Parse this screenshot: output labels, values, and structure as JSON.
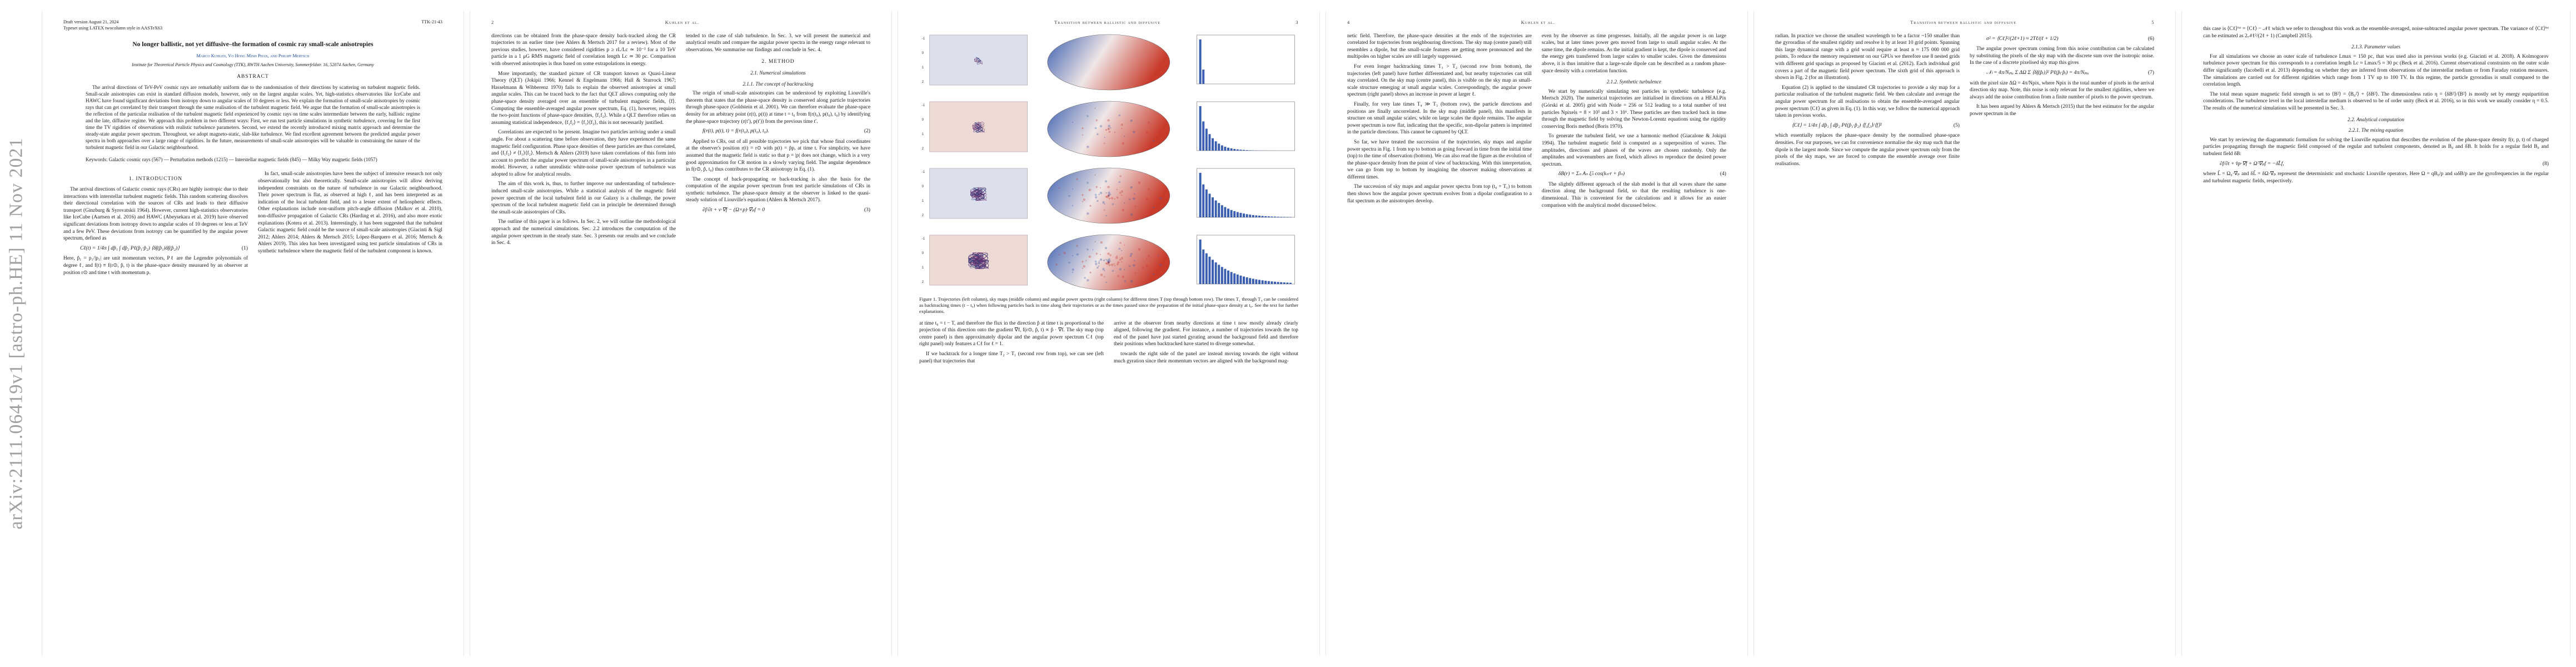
{
  "stamp": "arXiv:2111.06419v1  [astro-ph.HE]  11 Nov 2021",
  "pages": {
    "p1": {
      "preprint_line1": "Draft version August 21, 2024",
      "preprint_line2": "Typeset using LATEX twocolumn style in AASTeX63",
      "preprint_id": "TTK-21-43",
      "title": "No longer ballistic, not yet diffusive–the formation of cosmic ray small-scale anisotropies",
      "authors": "Marco Kuhlen, Vo Hong Minh Phan, and Philipp Mertsch",
      "affil": "Institute for Theoretical Particle Physics and Cosmology (TTK), RWTH Aachen University, Sommerfeldstr. 16, 52074 Aachen, Germany",
      "abstract_head": "ABSTRACT",
      "abstract": "The arrival directions of TeV-PeV cosmic rays are remarkably uniform due to the randomisation of their directions by scattering on turbulent magnetic fields. Small-scale anisotropies can exist in standard diffusion models, however, only on the largest angular scales. Yet, high-statistics observatories like IceCube and HAWC have found significant deviations from isotropy down to angular scales of 10 degrees or less. We explain the formation of small-scale anisotropies by cosmic rays that can get correlated by their transport through the same realisation of the turbulent magnetic field. We argue that the formation of small-scale anisotropies is the reflection of the particular realisation of the turbulent magnetic field experienced by cosmic rays on time scales intermediate between the early, ballistic regime and the late, diffusive regime. We approach this problem in two different ways: First, we run test particle simulations in synthetic turbulence, covering for the first time the TV rigidities of observations with realistic turbulence parameters. Second, we extend the recently introduced mixing matrix approach and determine the steady-state angular power spectrum. Throughout, we adopt magneto-static, slab-like turbulence. We find excellent agreement between the predicted angular power spectra in both approaches over a large range of rigidities. In the future, measurements of small-scale anisotropies will be valuable in constraining the nature of the turbulent magnetic field in our Galactic neighbourhood.",
      "keywords": "Keywords: Galactic cosmic rays (567) — Perturbation methods (1215) — Interstellar magnetic fields (845) — Milky Way magnetic fields (1057)",
      "intro_head": "1. INTRODUCTION",
      "intro_a": "The arrival directions of Galactic cosmic rays (CRs) are highly isotropic due to their interactions with interstellar turbulent magnetic fields. This random scattering dissolves their directional correlation with the sources of CRs and leads to their diffusive transport (Ginzburg & Syrovatskii 1964). However, current high-statistics observatories like IceCube (Aartsen et al. 2016) and HAWC (Abeysekara et al. 2019) have observed significant deviations from isotropy down to angular scales of 10 degrees or less at TeV and a few PeV. These deviations from isotropy can be quantified by the angular power spectrum, defined as",
      "eq1": "Cℓ(t) = 1/4π ∫ dp̂₁ ∫ dp̂₂ Pℓ(p̂₁·p̂₂) ⟨δf(p̂₁)δf(p̂₂)⟩",
      "eq1_no": "(1)",
      "intro_b": "Here, p̂₁ = p₁/|p₁| are unit momentum vectors, Pℓ are the Legendre polynomials of degree ℓ, and f(t) ≡ f(r⊙, p̂, t) is the phase-space density measured by an observer at position r⊙ and time t with momentum p.",
      "intro_c": "In fact, small-scale anisotropies have been the subject of intensive research not only observationally but also theoretically. Small-scale anisotropies will allow deriving independent constraints on the nature of turbulence in our Galactic neighbourhood. Their power spectrum is flat, as observed at high ℓ, and has been interpreted as an indication of the local turbulent field, and to a lesser extent of heliospheric effects. Other explanations include non-uniform pitch-angle diffusion (Malkov et al. 2010), non-diffusive propagation of Galactic CRs (Harding et al. 2016), and also more exotic explanations (Kotera et al. 2013). Interestingly, it has been suggested that the turbulent Galactic magnetic field could be the source of small-scale anisotropies (Giacinti & Sigl 2012; Ahlers 2014; Ahlers & Mertsch 2015; López-Barquero et al. 2016; Mertsch & Ahlers 2019). This idea has been investigated using test particle simulations of CRs in synthetic turbulence where the magnetic field of the turbulent component is known."
    },
    "p2": {
      "rh_left": "2",
      "rh_mid": "Kuhlen et al.",
      "text_a": "directions can be obtained from the phase-space density back-tracked along the CR trajectories to an earlier time (see Ahlers & Mertsch 2017 for a review). Most of the previous studies, however, have considered rigidities p ≥ rL/Lc ≃ 10⁻³ for a 10 TeV particle in a 1 μG RMS magnetic field of correlation length Lc ≃ 30 pc. Comparison with observed anisotropies is thus based on some extrapolations in energy.",
      "text_b": "More importantly, the standard picture of CR transport known as Quasi-Linear Theory (QLT) (Jokipii 1966; Kennel & Engelmann 1966; Hall & Sturrock 1967; Hasselmann & Wibberenz 1970) fails to explain the observed anisotropies at small angular scales. This can be traced back to the fact that QLT allows computing only the phase-space density averaged over an ensemble of turbulent magnetic fields, ⟨f⟩. Computing the ensemble-averaged angular power spectrum, Eq. (1), however, requires the two-point functions of phase-space densities, ⟨f₁f₂⟩. While a QLT therefore relies on assuming statistical independence, ⟨f₁f₂⟩ = ⟨f₁⟩⟨f₂⟩, this is not necessarily justified.",
      "text_c": "Correlations are expected to be present. Imagine two particles arriving under a small angle. For about a scattering time before observation, they have experienced the same magnetic field configuration. Phase space densities of these particles are thus correlated, and ⟨f₁f₂⟩ ≠ ⟨f₁⟩⟨f₂⟩. Mertsch & Ahlers (2019) have taken correlations of this form into account to predict the angular power spectrum of small-scale anisotropies in a particular model. However, a rather unrealistic white-noise power spectrum of turbulence was adopted to allow for analytical results.",
      "text_d": "The aim of this work is, thus, to further improve our understanding of turbulence-induced small-scale anisotropies. While a statistical analysis of the magnetic field power spectrum of the local turbulent field in our Galaxy is a challenge, the power spectrum of the local turbulent magnetic field can in principle be determined through the small-scale anisotropies of CRs.",
      "text_e": "The outline of this paper is as follows. In Sec. 2, we will outline the methodological approach and the numerical simulations. Sec. 2.2 introduces the computation of the angular power spectrum in the steady state. Sec. 3 presents our results and we conclude in Sec. 4.",
      "text_f": "tended to the case of slab turbulence. In Sec. 3, we will present the numerical and analytical results and compare the angular power spectra in the energy range relevant to observations. We summarise our findings and conclude in Sec. 4.",
      "sec2": "2. METHOD",
      "sec21": "2.1. Numerical simulations",
      "sec211": "2.1.1. The concept of backtracking",
      "text_g": "The origin of small-scale anisotropies can be understood by exploiting Liouville's theorem that states that the phase-space density is conserved along particle trajectories through phase-space (Goldstein et al. 2001). We can therefore evaluate the phase-space density for an arbitrary point (r(t), p(t)) at time t = t₀ from f(r(t₀), p(t₀), t₀) by identifying the phase-space trajectory (r(t′), p(t′)) from the previous time t′.",
      "eq2": "f(r(t), p(t), t) = f(r(t₀), p(t₀), t₀).",
      "eq2_no": "(2)",
      "text_h": "Applied to CRs, out of all possible trajectories we pick that whose final coordinates at the observer's position r(t) = r⊙ with p(t) = p̂p, at time t. For simplicity, we have assumed that the magnetic field is static so that p = |p| does not change, which is a very good approximation for CR motion in a slowly varying field. The angular dependence in f(r⊙, p̂, t₀) thus contributes to the CR anisotropy in Eq. (1).",
      "text_i": "The concept of back-propagating or back-tracking is also the basis for the computation of the angular power spectrum from test particle simulations of CRs in synthetic turbulence. The phase-space density at the observer is linked to the quasi-steady solution of Liouville's equation (Ahlers & Mertsch 2017).",
      "eq3": "∂f/∂t + v·∇f − (Ω×p)·∇ₚf = 0",
      "eq3_no": "(3)"
    },
    "p3": {
      "rh_mid": "Transition between ballistic and diffusive",
      "rh_right": "3",
      "caption": "Figure 1. Trajectories (left column), sky maps (middle column) and angular power spectra (right column) for different times T (top through bottom row). The times T₁ through T₄ can be considered as backtracking times (t − t₀) when following particles back in time along their trajectories or as the times passed since the preparation of the initial phase-space density at t₀. See the text for further explanations.",
      "text_a": "at time t₀ = t − T, and therefore the flux in the direction p̂ at time t is proportional to the projection of this direction onto the gradient ∇f, f(r⊙, p̂, t) ∝ p̂ · ∇f. The sky map (top centre panel) is then approximately dipolar and the angular power spectrum Cℓ (top right panel) only features a Cℓ for ℓ = 1.",
      "text_b": "If we backtrack for a longer time T₂ > T₁ (second row from top), we can see (left panel) that trajectories that",
      "text_c": "arrive at the observer from nearby directions at time t now mostly already clearly aligned, following the gradient. For instance, a number of trajectories towards the top end of the panel have just started gyrating around the background field and therefore their positions when backtracked have started to diverge somewhat.",
      "text_d": "towards the right side of the panel are instead moving towards the right without much gyration since their momentum vectors are aligned with the background mag-",
      "axis_ticks": [
        "-1",
        "0",
        "1",
        "2"
      ]
    },
    "p4": {
      "rh_left": "4",
      "rh_mid": "Kuhlen et al.",
      "text_a": "netic field. Therefore, the phase-space densities at the ends of the trajectories are correlated for trajectories from neighbouring directions. The sky map (centre panel) still resembles a dipole, but the small-scale features are getting more pronounced and the multipoles on higher scales are still largely suppressed.",
      "text_b": "For even longer backtracking times T₃ > T₂ (second row from bottom), the trajectories (left panel) have further differentiated and, but nearby trajectories can still stay correlated. On the sky map (centre panel), this is visible on the sky map as small-scale structure emerging at small angular scales. Correspondingly, the angular power spectrum (right panel) shows an increase in power at larger ℓ.",
      "text_c": "Finally, for very late times T₄ ≫ T₃ (bottom row), the particle directions and positions are finally uncorrelated. In the sky map (middle panel), this manifests in structure on small angular scales, while on large scales the dipole remains. The angular power spectrum is now flat, indicating that the specific, non-dipolar pattern is imprinted in the particle directions. This cannot be captured by QLT.",
      "text_d": "So far, we have treated the succession of the trajectories, sky maps and angular power spectra in Fig. 1 from top to bottom as going forward in time from the initial time (top) to the time of observation (bottom). We can also read the figure as the evolution of the phase-space density from the point of view of backtracking. With this interpretation, we can go from top to bottom by imagining the observer making observations at different times.",
      "text_e": "The succession of sky maps and angular power spectra from top (t₀ + T₁) to bottom then shows how the angular power spectrum evolves from a dipolar configuration to a flat spectrum as the anisotropies develop.",
      "text_f": "even by the observer as time progresses. Initially, all the angular power is on large scales, but at later times power gets moved from large to small angular scales. At the same time, the dipole remains. As the initial gradient is kept, the dipole is conserved and the energy gets transferred from larger scales to smaller scales. Given the dimensions above, it is thus intuitive that a large-scale dipole can be described as a random phase-space density with a correlation function.",
      "sec212": "2.1.2. Synthetic turbulence",
      "text_g": "We start by numerically simulating test particles in synthetic turbulence (e.g. Mertsch 2020). The numerical trajectories are initialised in directions on a HEALPix (Górski et al. 2005) grid with Nside = 256 or 512 leading to a total number of test particles Npixels = 8 × 10⁵ and 3 × 10⁶. These particles are then tracked back in time through the magnetic field by solving the Newton-Lorentz equations using the rigidity conserving Boris method (Boris 1970).",
      "text_h": "To generate the turbulent field, we use a harmonic method (Giacalone & Jokipii 1994). The turbulent magnetic field is computed as a superposition of waves. The amplitudes, directions and phases of the waves are chosen randomly. Only the amplitudes and wavenumbers are fixed, which allows to reproduce the desired power spectrum.",
      "eq4": "δB(r) = Σₙ Aₙ ξ̂ₙ cos(kₙ·r + βₙ)",
      "eq4_no": "(4)",
      "text_i": "The slightly different approach of the slab model is that all waves share the same direction along the background field, so that the resulting turbulence is one-dimensional. This is convenient for the calculations and it allows for an easier comparison with the analytical model discussed below."
    },
    "p5": {
      "rh_mid": "Transition between ballistic and diffusive",
      "rh_right": "5",
      "text_a": "radian. In practice we choose the smallest wavelength to be a factor ~150 smaller than the gyroradius of the smallest rigidity and resolve it by at least 10 grid points. Spanning this large dynamical range with a grid would require at least n ≈ 175 000 000 grid points. To reduce the memory requirement on our GPUs we therefore use 8 nested grids with different grid spacings as proposed by Giacinti et al. (2012). Each individual grid covers a part of the magnetic field power spectrum. The sixth grid of this approach is shown in Fig. 2 (for an illustration).",
      "text_b": "Equation (2) is applied to the simulated CR trajectories to provide a sky map for a particular realisation of the turbulent magnetic field. We then calculate and average the angular power spectrum for all realisations to obtain the ensemble-averaged angular power spectrum ⟨Cℓ⟩ as given in Eq. (1). In this way, we follow the numerical approach taken in previous works.",
      "eq5": "⟨Cℓ⟩ = 1/4π ∫ dp̂₁ ∫ dp̂₂ Pℓ(p̂₁·p̂₂) ⟨f₁f₂⟩/⟨f⟩²",
      "eq5_no": "(5)",
      "text_c": "which essentially replaces the phase-space density by the normalised phase-space densities. For our purposes, we can for convenience normalise the sky map such that the dipole is the largest mode. Since we compute the angular power spectrum only from the pixels of the sky maps, we are forced to compute the ensemble average over finite realisations.",
      "eq6": "σ² = ⟨Cℓ⟩²/(2ℓ+1) ≈ 2Tℓ/(ℓ + 1/2)",
      "eq6_no": "(6)",
      "text_d": "The angular power spectrum coming from this noise contribution can be calculated by substituting the pixels of the sky map with the discrete sum over the isotropic noise. In the case of a discrete pixelised sky map this gives",
      "eq7": "𝒩ₗ = 4π/Nₚᵢₓ Σ ΔΩ Σ ⟨δf(p̂ᵢ)⟩² Pℓ(p̂ᵢ·p̂ᵢ) = 4π/Nₚᵢₓ",
      "eq7_no": "(7)",
      "text_e": "with the pixel size ΔΩ = 4π/Npix, where Npix is the total number of pixels in the arrival direction sky map. Note, this noise is only relevant for the smallest rigidities, where we always add the noise contribution from a finite number of pixels to the power spectrum.",
      "text_f": "It has been argued by Ahlers & Mertsch (2015) that the best estimator for the angular power spectrum in the"
    },
    "p6": {
      "text_a": "this case is ⟨Cℓ⟩ⁱˢᵒ = ⟨Cℓ⟩ − 𝒩ℓ which we refer to throughout this work as the ensemble-averaged, noise-subtracted angular power spectrum. The variance of ⟨Cℓ⟩ⁱˢᵒ can be estimated as 2𝒩ℓ²/(2ℓ + 1) (Campbell 2015).",
      "sec213": "2.1.3. Parameter values",
      "text_b": "For all simulations we choose an outer scale of turbulence Lmax = 150 pc, that was used also in previous works (e.g. Giacinti et al. 2018). A Kolmogorov turbulence power spectrum for this corresponds to a correlation length Lc ≈ Lmax/5 ≈ 30 pc (Beck et al. 2016). Current observational constraints on the outer scale differ significantly (Iacobelli et al. 2013) depending on whether they are inferred from observations of the interstellar medium or from Faraday rotation measures. The simulations are carried out for different rigidities which range from 1 TV up to 100 TV. In this regime, the particle gyroradius is small compared to the correlation length.",
      "text_c": "The total mean square magnetic field strength is set to ⟨B²⟩ = ⟨B₀²⟩ + ⟨δB²⟩. The dimensionless ratio η = ⟨δB²⟩/⟨B²⟩ is mostly set by energy equipartition considerations. The turbulence level in the local interstellar medium is observed to be of order unity (Beck et al. 2016), so in this work we usually consider η = 0.5. The results of the numerical simulations will be presented in Sec. 3.",
      "sec22": "2.2. Analytical computation",
      "sec221": "2.2.1. The mixing equation",
      "text_d": "We start by reviewing the diagrammatic formalism for solving the Liouville equation that describes the evolution of the phase-space density f(r, p, t) of charged particles propagating through the magnetic field composed of the regular and turbulent components, denoted as B₀ and δB. It holds for a regular field B₀ and turbulent field δB:",
      "eq8": "∂f/∂t + v̂p·∇f + Ω̂·∇ₚf = −δL̂f,",
      "eq8_no": "(8)",
      "text_e": "where L̂ = Ω₀·∇ₚ and δL̂ = δΩ·∇ₚ represent the deterministic and stochastic Liouville operators. Here Ω = qB₀/p and ωδB/p are the gyrofrequencies in the regular and turbulent magnetic fields, respectively."
    }
  },
  "colors": {
    "stamp": "#a0a0a0",
    "link": "#1f4a9a",
    "dipole_red": "#c83a2a",
    "dipole_blue": "#3a5fb0"
  }
}
